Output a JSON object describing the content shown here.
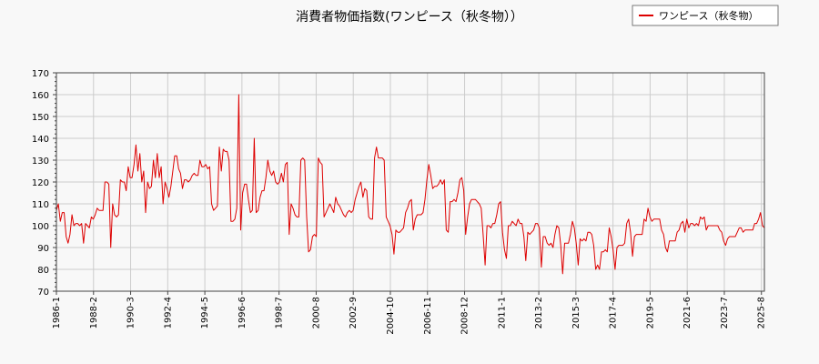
{
  "chart_data": {
    "type": "line",
    "title": "消費者物価指数(ワンピース（秋冬物））",
    "ylim": [
      70,
      170
    ],
    "y_ticks": [
      70,
      80,
      90,
      100,
      110,
      120,
      130,
      140,
      150,
      160,
      170
    ],
    "x_ticks": [
      "1986-1",
      "1988-2",
      "1990-3",
      "1992-4",
      "1994-5",
      "1996-6",
      "1998-7",
      "2000-8",
      "2002-9",
      "2004-10",
      "2006-11",
      "2008-12",
      "2011-1",
      "2013-2",
      "2015-3",
      "2017-4",
      "2019-5",
      "2021-6",
      "2023-7",
      "2025-8"
    ],
    "grid": true,
    "legend_position": "top-right",
    "series": [
      {
        "name": "ワンピース（秋冬物）",
        "color": "#dd0000",
        "x_start": "1986-1",
        "x_end": "2025-10",
        "values": [
          107,
          110,
          102,
          106,
          106,
          95,
          92,
          96,
          105,
          100,
          101,
          101,
          100,
          101,
          92,
          101,
          100,
          99,
          104,
          103,
          105,
          108,
          107,
          107,
          107,
          120,
          120,
          119,
          90,
          110,
          105,
          104,
          105,
          121,
          120,
          120,
          116,
          127,
          122,
          122,
          128,
          137,
          125,
          133,
          120,
          125,
          106,
          120,
          117,
          118,
          130,
          122,
          133,
          122,
          127,
          110,
          120,
          117,
          113,
          118,
          125,
          132,
          132,
          126,
          124,
          117,
          121,
          121,
          120,
          121,
          123,
          124,
          123,
          123,
          130,
          127,
          127,
          128,
          126,
          127,
          110,
          107,
          108,
          109,
          136,
          125,
          135,
          134,
          134,
          130,
          102,
          102,
          103,
          108,
          160,
          98,
          115,
          119,
          119,
          112,
          106,
          107,
          140,
          106,
          107,
          113,
          116,
          116,
          122,
          130,
          125,
          123,
          125,
          120,
          119,
          120,
          124,
          120,
          128,
          129,
          96,
          110,
          108,
          105,
          104,
          104,
          130,
          131,
          130,
          104,
          88,
          89,
          95,
          96,
          95,
          131,
          129,
          128,
          104,
          106,
          108,
          110,
          108,
          106,
          113,
          110,
          109,
          107,
          105,
          104,
          106,
          107,
          106,
          107,
          112,
          115,
          118,
          120,
          113,
          117,
          116,
          104,
          103,
          103,
          131,
          136,
          131,
          131,
          131,
          130,
          104,
          102,
          100,
          96,
          87,
          98,
          97,
          97,
          98,
          99,
          106,
          108,
          111,
          112,
          98,
          103,
          105,
          105,
          105,
          106,
          112,
          121,
          128,
          123,
          117,
          118,
          118,
          119,
          121,
          119,
          121,
          98,
          97,
          111,
          111,
          112,
          111,
          115,
          121,
          122,
          116,
          96,
          104,
          110,
          112,
          112,
          112,
          111,
          110,
          108,
          96,
          82,
          100,
          100,
          99,
          101,
          101,
          105,
          110,
          111,
          97,
          89,
          85,
          100,
          100,
          102,
          101,
          100,
          103,
          101,
          101,
          95,
          84,
          97,
          96,
          97,
          98,
          101,
          101,
          99,
          81,
          95,
          95,
          92,
          91,
          92,
          90,
          96,
          100,
          99,
          91,
          78,
          92,
          92,
          92,
          96,
          102,
          99,
          92,
          82,
          94,
          93,
          94,
          93,
          97,
          97,
          96,
          91,
          80,
          82,
          80,
          88,
          88,
          89,
          88,
          99,
          95,
          89,
          80,
          90,
          91,
          91,
          91,
          92,
          101,
          103,
          97,
          86,
          95,
          96,
          96,
          96,
          96,
          103,
          102,
          108,
          104,
          102,
          103,
          103,
          103,
          103,
          98,
          96,
          90,
          88,
          93,
          93,
          93,
          93,
          97,
          98,
          101,
          102,
          97,
          103,
          99,
          101,
          101,
          100,
          101,
          100,
          104,
          103,
          104,
          98,
          100,
          100,
          100,
          100,
          100,
          100,
          98,
          97,
          93,
          91,
          94,
          95,
          95,
          95,
          95,
          97,
          99,
          99,
          97,
          98,
          98,
          98,
          98,
          98,
          101,
          101,
          103,
          106,
          100,
          99
        ]
      }
    ]
  }
}
